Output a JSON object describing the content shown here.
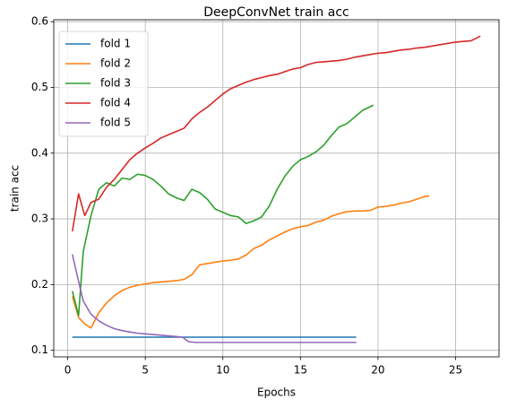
{
  "chart_data": {
    "type": "line",
    "title": "DeepConvNet train acc",
    "xlabel": "Epochs",
    "ylabel": "train acc",
    "xlim": [
      -0.9,
      27.8
    ],
    "ylim": [
      0.09,
      0.603
    ],
    "xticks": [
      0,
      5,
      10,
      15,
      20,
      25
    ],
    "yticks": [
      0.1,
      0.2,
      0.3,
      0.4,
      0.5,
      0.6
    ],
    "xtick_labels": [
      "0",
      "5",
      "10",
      "15",
      "20",
      "25"
    ],
    "ytick_labels": [
      "0.1",
      "0.2",
      "0.3",
      "0.4",
      "0.5",
      "0.6"
    ],
    "grid": true,
    "legend_position": "top-left",
    "series": [
      {
        "name": "fold 1",
        "color": "#1f77b4",
        "points": [
          [
            0.3,
            0.12
          ],
          [
            5,
            0.12
          ],
          [
            10,
            0.12
          ],
          [
            15,
            0.12
          ],
          [
            18.6,
            0.12
          ]
        ]
      },
      {
        "name": "fold 2",
        "color": "#ff7f0e",
        "points": [
          [
            0.3,
            0.182
          ],
          [
            0.7,
            0.15
          ],
          [
            1.1,
            0.14
          ],
          [
            1.5,
            0.134
          ],
          [
            2.0,
            0.157
          ],
          [
            2.5,
            0.172
          ],
          [
            3.0,
            0.183
          ],
          [
            3.5,
            0.191
          ],
          [
            4.0,
            0.196
          ],
          [
            4.5,
            0.199
          ],
          [
            5.0,
            0.201
          ],
          [
            5.5,
            0.203
          ],
          [
            6.0,
            0.204
          ],
          [
            6.5,
            0.205
          ],
          [
            7.0,
            0.206
          ],
          [
            7.5,
            0.208
          ],
          [
            8.0,
            0.215
          ],
          [
            8.5,
            0.23
          ],
          [
            9.0,
            0.232
          ],
          [
            9.5,
            0.234
          ],
          [
            10.0,
            0.236
          ],
          [
            10.5,
            0.237
          ],
          [
            11.0,
            0.239
          ],
          [
            11.5,
            0.245
          ],
          [
            12.0,
            0.255
          ],
          [
            12.5,
            0.26
          ],
          [
            13.0,
            0.268
          ],
          [
            13.5,
            0.274
          ],
          [
            14.0,
            0.28
          ],
          [
            14.5,
            0.285
          ],
          [
            15.0,
            0.288
          ],
          [
            15.5,
            0.29
          ],
          [
            16.0,
            0.295
          ],
          [
            16.5,
            0.298
          ],
          [
            17.0,
            0.304
          ],
          [
            17.5,
            0.308
          ],
          [
            18.0,
            0.311
          ],
          [
            18.5,
            0.312
          ],
          [
            19.0,
            0.312
          ],
          [
            19.5,
            0.313
          ],
          [
            20.0,
            0.318
          ],
          [
            20.5,
            0.319
          ],
          [
            21.0,
            0.321
          ],
          [
            21.5,
            0.324
          ],
          [
            22.0,
            0.326
          ],
          [
            22.5,
            0.33
          ],
          [
            23.0,
            0.334
          ],
          [
            23.3,
            0.335
          ]
        ]
      },
      {
        "name": "fold 3",
        "color": "#2ca02c",
        "points": [
          [
            0.3,
            0.19
          ],
          [
            0.7,
            0.153
          ],
          [
            1.0,
            0.25
          ],
          [
            1.5,
            0.305
          ],
          [
            2.0,
            0.345
          ],
          [
            2.5,
            0.355
          ],
          [
            3.0,
            0.35
          ],
          [
            3.5,
            0.362
          ],
          [
            4.0,
            0.36
          ],
          [
            4.5,
            0.368
          ],
          [
            5.0,
            0.366
          ],
          [
            5.5,
            0.36
          ],
          [
            6.0,
            0.35
          ],
          [
            6.5,
            0.338
          ],
          [
            7.0,
            0.332
          ],
          [
            7.5,
            0.328
          ],
          [
            8.0,
            0.345
          ],
          [
            8.5,
            0.34
          ],
          [
            9.0,
            0.33
          ],
          [
            9.5,
            0.315
          ],
          [
            10.0,
            0.31
          ],
          [
            10.5,
            0.305
          ],
          [
            11.0,
            0.303
          ],
          [
            11.5,
            0.293
          ],
          [
            12.0,
            0.297
          ],
          [
            12.5,
            0.303
          ],
          [
            13.0,
            0.32
          ],
          [
            13.5,
            0.345
          ],
          [
            14.0,
            0.365
          ],
          [
            14.5,
            0.38
          ],
          [
            15.0,
            0.39
          ],
          [
            15.5,
            0.395
          ],
          [
            16.0,
            0.402
          ],
          [
            16.5,
            0.412
          ],
          [
            17.0,
            0.427
          ],
          [
            17.5,
            0.44
          ],
          [
            18.0,
            0.445
          ],
          [
            18.5,
            0.455
          ],
          [
            19.0,
            0.465
          ],
          [
            19.7,
            0.473
          ]
        ]
      },
      {
        "name": "fold 4",
        "color": "#d62728",
        "points": [
          [
            0.3,
            0.281
          ],
          [
            0.7,
            0.338
          ],
          [
            1.1,
            0.305
          ],
          [
            1.5,
            0.325
          ],
          [
            2.0,
            0.33
          ],
          [
            2.5,
            0.348
          ],
          [
            3.0,
            0.36
          ],
          [
            3.5,
            0.375
          ],
          [
            4.0,
            0.39
          ],
          [
            4.5,
            0.4
          ],
          [
            5.0,
            0.408
          ],
          [
            5.5,
            0.415
          ],
          [
            6.0,
            0.423
          ],
          [
            6.5,
            0.428
          ],
          [
            7.0,
            0.433
          ],
          [
            7.5,
            0.438
          ],
          [
            8.0,
            0.452
          ],
          [
            8.5,
            0.462
          ],
          [
            9.0,
            0.47
          ],
          [
            9.5,
            0.48
          ],
          [
            10.0,
            0.49
          ],
          [
            10.5,
            0.498
          ],
          [
            11.0,
            0.503
          ],
          [
            11.5,
            0.508
          ],
          [
            12.0,
            0.512
          ],
          [
            12.5,
            0.515
          ],
          [
            13.0,
            0.518
          ],
          [
            13.5,
            0.52
          ],
          [
            14.0,
            0.524
          ],
          [
            14.5,
            0.528
          ],
          [
            15.0,
            0.53
          ],
          [
            15.5,
            0.535
          ],
          [
            16.0,
            0.538
          ],
          [
            16.5,
            0.539
          ],
          [
            17.0,
            0.54
          ],
          [
            17.5,
            0.541
          ],
          [
            18.0,
            0.543
          ],
          [
            18.5,
            0.546
          ],
          [
            19.0,
            0.548
          ],
          [
            19.5,
            0.55
          ],
          [
            20.0,
            0.552
          ],
          [
            20.5,
            0.553
          ],
          [
            21.0,
            0.555
          ],
          [
            21.5,
            0.557
          ],
          [
            22.0,
            0.558
          ],
          [
            22.5,
            0.56
          ],
          [
            23.0,
            0.561
          ],
          [
            23.5,
            0.563
          ],
          [
            24.0,
            0.565
          ],
          [
            24.5,
            0.567
          ],
          [
            25.0,
            0.569
          ],
          [
            25.5,
            0.57
          ],
          [
            26.0,
            0.571
          ],
          [
            26.6,
            0.578
          ]
        ]
      },
      {
        "name": "fold 5",
        "color": "#9467bd",
        "points": [
          [
            0.3,
            0.246
          ],
          [
            0.6,
            0.215
          ],
          [
            1.0,
            0.175
          ],
          [
            1.5,
            0.155
          ],
          [
            2.0,
            0.145
          ],
          [
            2.5,
            0.138
          ],
          [
            3.0,
            0.133
          ],
          [
            3.5,
            0.13
          ],
          [
            4.0,
            0.128
          ],
          [
            4.5,
            0.126
          ],
          [
            5.0,
            0.125
          ],
          [
            5.5,
            0.124
          ],
          [
            6.0,
            0.123
          ],
          [
            6.5,
            0.122
          ],
          [
            7.0,
            0.121
          ],
          [
            7.4,
            0.12
          ],
          [
            7.8,
            0.113
          ],
          [
            8.3,
            0.112
          ],
          [
            10,
            0.112
          ],
          [
            15,
            0.112
          ],
          [
            18.6,
            0.112
          ]
        ]
      }
    ]
  }
}
